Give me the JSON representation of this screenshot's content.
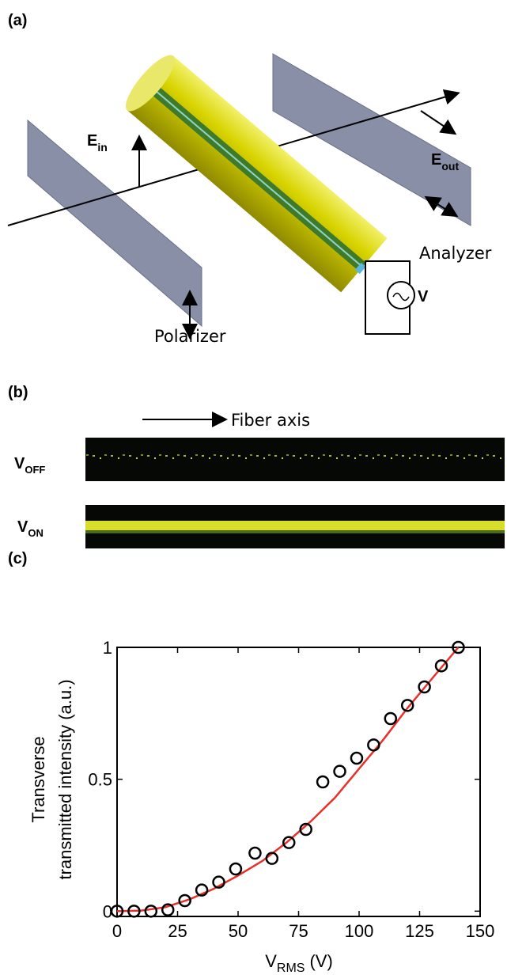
{
  "panel_a": {
    "label": "(a)",
    "e_in": {
      "main": "E",
      "sub": "in"
    },
    "e_out": {
      "main": "E",
      "sub": "out"
    },
    "analyzer": "Analyzer",
    "polarizer": "Polarizer",
    "voltage": "V"
  },
  "panel_b": {
    "label": "(b)",
    "fiber_axis": "Fiber axis",
    "v_off": {
      "main": "V",
      "sub": "OFF"
    },
    "v_on": {
      "main": "V",
      "sub": "ON"
    }
  },
  "panel_c": {
    "label": "(c)"
  },
  "chart_data": {
    "type": "scatter",
    "y_label": [
      "Transverse",
      "transmitted intensity (a.u.)"
    ],
    "x_label": {
      "main": "V",
      "sub": "RMS",
      "unit": "(V)"
    },
    "xlim": [
      0,
      150
    ],
    "xticks": [
      0,
      25,
      50,
      75,
      100,
      125,
      150
    ],
    "ylim": [
      -0.02,
      1
    ],
    "yticks": [
      0,
      0.5,
      1
    ],
    "series": [
      {
        "type": "scatter",
        "color": "#000000",
        "x": [
          0,
          7,
          14,
          21,
          28,
          35,
          42,
          49,
          57,
          64,
          71,
          78,
          85,
          92,
          99,
          106,
          113,
          120,
          127,
          134,
          141
        ],
        "values": [
          0,
          0,
          0,
          0.005,
          0.04,
          0.08,
          0.11,
          0.16,
          0.22,
          0.2,
          0.26,
          0.31,
          0.49,
          0.53,
          0.58,
          0.63,
          0.73,
          0.78,
          0.85,
          0.93,
          1.0
        ]
      },
      {
        "type": "line",
        "color": "#e8302a",
        "x": [
          0,
          10,
          20,
          30,
          40,
          50,
          60,
          70,
          80,
          90,
          100,
          110,
          120,
          130,
          141
        ],
        "values": [
          0,
          0.002,
          0.015,
          0.045,
          0.085,
          0.135,
          0.19,
          0.26,
          0.34,
          0.43,
          0.54,
          0.65,
          0.77,
          0.88,
          1.0
        ]
      }
    ]
  }
}
